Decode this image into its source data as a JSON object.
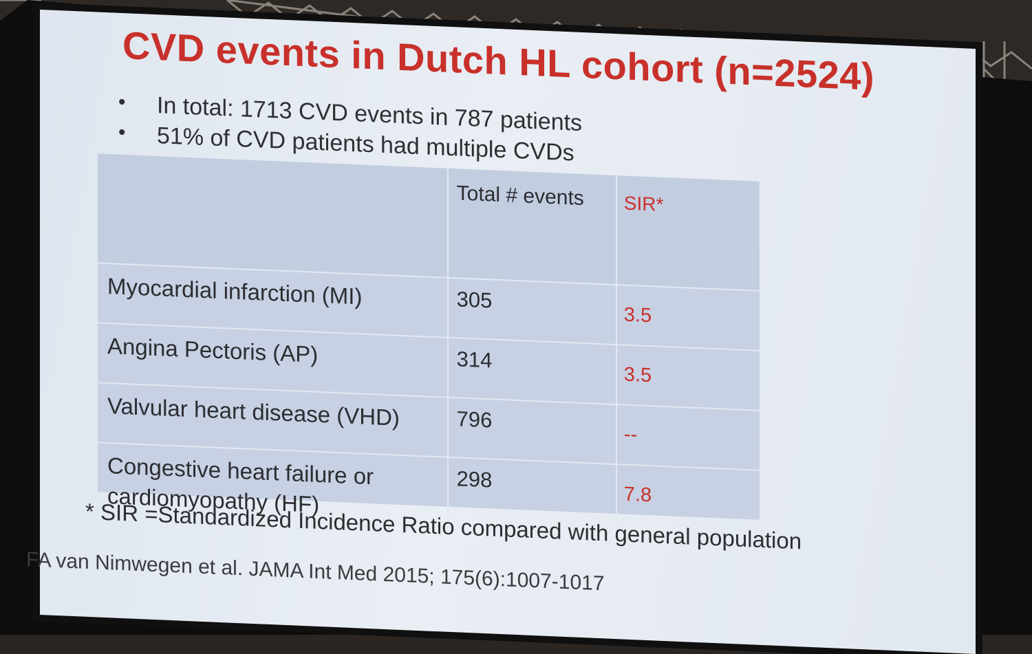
{
  "slide": {
    "title": "CVD events in Dutch HL cohort (n=2524)",
    "bullets": [
      "In total: 1713 CVD events in 787 patients",
      "51% of CVD patients had multiple CVDs"
    ],
    "bullet_glyph": "•",
    "table": {
      "headers": [
        "",
        "Total # events",
        "SIR*"
      ],
      "rows": [
        {
          "condition": "Myocardial infarction (MI)",
          "total": "305",
          "sir": "3.5"
        },
        {
          "condition": "Angina Pectoris (AP)",
          "total": "314",
          "sir": "3.5"
        },
        {
          "condition": "Valvular heart disease (VHD)",
          "total": "796",
          "sir": "--"
        },
        {
          "condition": "Congestive heart failure or cardiomyopathy (HF)",
          "total": "298",
          "sir": "7.8"
        }
      ]
    },
    "footnote": "* SIR =Standardized Incidence Ratio compared with general population",
    "citation": "FA van Nimwegen et al. JAMA Int Med 2015; 175(6):1007-1017"
  },
  "colors": {
    "title": "#c8312b",
    "sir": "#c8312b",
    "slide_bg": "#e4eaf2",
    "table_bg": "#c7d1e3",
    "text": "#2c2d31"
  }
}
